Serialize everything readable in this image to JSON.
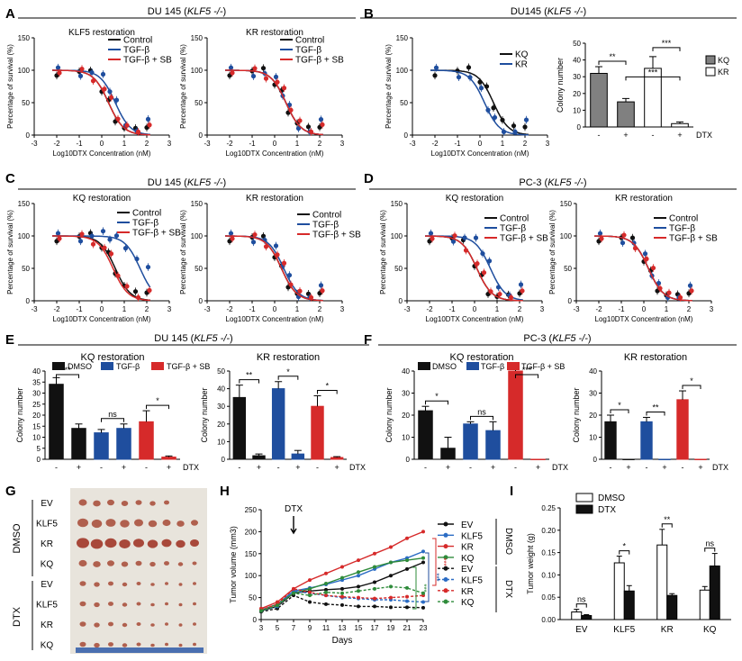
{
  "colors": {
    "black": "#111111",
    "blue": "#1f4e9e",
    "red": "#d62a2a",
    "green": "#2e8b3a",
    "gray": "#808080",
    "white": "#ffffff",
    "light_blue": "#2b6cc4"
  },
  "panel_labels": [
    "A",
    "B",
    "C",
    "D",
    "E",
    "F",
    "G",
    "H",
    "I"
  ],
  "group_titles": {
    "A": "DU 145 (KLF5 -/-)",
    "B": "DU145 (KLF5 -/-)",
    "C": "DU 145 (KLF5 -/-)",
    "D": "PC-3 (KLF5 -/-)",
    "E": "DU 145 (KLF5 -/-)",
    "F": "PC-3 (KLF5 -/-)"
  },
  "common": {
    "survival_ylabel": "Percentage of survival (%)",
    "dtx_xlabel": "Log10DTX Concentration (nM)",
    "colony_ylabel": "Colony number",
    "legend3": [
      "Control",
      "TGF-β",
      "TGF-β + SB"
    ],
    "legend_bars3": [
      "DMSO",
      "TGF-β",
      "TGF-β + SB"
    ],
    "x_ticks": [
      "-3",
      "-2",
      "-1",
      "0",
      "1",
      "2",
      "3"
    ],
    "y_ticks": [
      "0",
      "50",
      "100",
      "150"
    ],
    "signs6": [
      "-",
      "+",
      "-",
      "+",
      "-",
      "+"
    ],
    "dtx_label": "DTX"
  },
  "chart_data": [
    {
      "id": "A1",
      "type": "line",
      "title": "KLF5 restoration",
      "xlim": [
        -3,
        3
      ],
      "ylim": [
        0,
        150
      ],
      "series": [
        {
          "name": "Control",
          "ec50": 0.3
        },
        {
          "name": "TGF-β",
          "ec50": 0.6
        },
        {
          "name": "TGF-β + SB",
          "ec50": 0.3
        }
      ]
    },
    {
      "id": "A2",
      "type": "line",
      "title": "KR restoration",
      "xlim": [
        -3,
        3
      ],
      "ylim": [
        0,
        150
      ],
      "series": [
        {
          "name": "Control",
          "ec50": 0.5
        },
        {
          "name": "TGF-β",
          "ec50": 0.5
        },
        {
          "name": "TGF-β + SB",
          "ec50": 0.5
        }
      ]
    },
    {
      "id": "B1",
      "type": "line",
      "title": "",
      "xlim": [
        -3,
        3
      ],
      "ylim": [
        0,
        150
      ],
      "series": [
        {
          "name": "KQ",
          "ec50": 0.6
        },
        {
          "name": "KR",
          "ec50": 0.2
        }
      ]
    },
    {
      "id": "B2",
      "type": "bar",
      "title": "",
      "ylim": [
        0,
        50
      ],
      "y_ticks": [
        "0",
        "10",
        "20",
        "30",
        "40",
        "50"
      ],
      "legend": [
        "KQ",
        "KR"
      ],
      "values": [
        32,
        15,
        35,
        2
      ],
      "errors": [
        4,
        2,
        7,
        1
      ],
      "sig": [
        {
          "text": "**"
        },
        {
          "text": "***"
        },
        {
          "text": "***"
        }
      ]
    },
    {
      "id": "C1",
      "type": "line",
      "title": "KQ restoration",
      "xlim": [
        -3,
        3
      ],
      "ylim": [
        0,
        150
      ],
      "series": [
        {
          "name": "Control",
          "ec50": 0.6
        },
        {
          "name": "TGF-β",
          "ec50": 1.7
        },
        {
          "name": "TGF-β + SB",
          "ec50": 0.5
        }
      ]
    },
    {
      "id": "C2",
      "type": "line",
      "title": "KR restoration",
      "xlim": [
        -3,
        3
      ],
      "ylim": [
        0,
        150
      ],
      "series": [
        {
          "name": "Control",
          "ec50": 0.3
        },
        {
          "name": "TGF-β",
          "ec50": 0.4
        },
        {
          "name": "TGF-β + SB",
          "ec50": 0.3
        }
      ]
    },
    {
      "id": "D1",
      "type": "line",
      "title": "KQ restoration",
      "xlim": [
        -3,
        3
      ],
      "ylim": [
        0,
        150
      ],
      "series": [
        {
          "name": "Control",
          "ec50": 0.1
        },
        {
          "name": "TGF-β",
          "ec50": 0.7
        },
        {
          "name": "TGF-β + SB",
          "ec50": 0.1
        }
      ]
    },
    {
      "id": "D2",
      "type": "line",
      "title": "KR restoration",
      "xlim": [
        -3,
        3
      ],
      "ylim": [
        0,
        150
      ],
      "series": [
        {
          "name": "Control",
          "ec50": 0.2
        },
        {
          "name": "TGF-β",
          "ec50": 0.2
        },
        {
          "name": "TGF-β + SB",
          "ec50": 0.2
        }
      ]
    },
    {
      "id": "E1",
      "type": "bar",
      "title": "KQ restoration",
      "ylim": [
        0,
        40
      ],
      "y_ticks": [
        "0",
        "5",
        "10",
        "15",
        "20",
        "25",
        "30",
        "35",
        "40"
      ],
      "values": [
        34,
        14,
        12,
        14,
        17,
        1
      ],
      "errors": [
        3,
        2,
        1.5,
        2,
        5,
        0.5
      ],
      "sig": [
        {
          "text": "**"
        },
        {
          "text": "ns"
        },
        {
          "text": "*"
        }
      ]
    },
    {
      "id": "E2",
      "type": "bar",
      "title": "KR restoration",
      "ylim": [
        0,
        50
      ],
      "y_ticks": [
        "0",
        "10",
        "20",
        "30",
        "40",
        "50"
      ],
      "values": [
        35,
        2,
        40,
        3,
        30,
        1
      ],
      "errors": [
        7,
        1,
        4,
        2,
        6,
        0.5
      ],
      "sig": [
        {
          "text": "**"
        },
        {
          "text": "*"
        },
        {
          "text": "*"
        }
      ]
    },
    {
      "id": "F1",
      "type": "bar",
      "title": "KQ restoration",
      "ylim": [
        0,
        40
      ],
      "y_ticks": [
        "0",
        "10",
        "20",
        "30",
        "40"
      ],
      "values": [
        22,
        5,
        16,
        13,
        40,
        0
      ],
      "errors": [
        2,
        5,
        1,
        4,
        1,
        0
      ],
      "sig": [
        {
          "text": "*"
        },
        {
          "text": "ns"
        },
        {
          "text": "***"
        }
      ]
    },
    {
      "id": "F2",
      "type": "bar",
      "title": "KR restoration",
      "ylim": [
        0,
        40
      ],
      "y_ticks": [
        "0",
        "10",
        "20",
        "30",
        "40"
      ],
      "values": [
        17,
        0,
        17,
        0,
        27,
        0
      ],
      "errors": [
        3,
        0,
        2,
        0,
        4,
        0
      ],
      "sig": [
        {
          "text": "*"
        },
        {
          "text": "**"
        },
        {
          "text": "*"
        }
      ]
    },
    {
      "id": "H",
      "type": "line",
      "title": "",
      "xlabel": "Days",
      "ylabel": "Tumor volume (mm3)",
      "ylim": [
        0,
        250
      ],
      "y_ticks": [
        "0",
        "50",
        "100",
        "150",
        "200",
        "250"
      ],
      "x": [
        3,
        5,
        7,
        9,
        11,
        13,
        15,
        17,
        19,
        21,
        23
      ],
      "x_ticks": [
        "3",
        "5",
        "7",
        "9",
        "11",
        "13",
        "15",
        "17",
        "19",
        "21",
        "23"
      ],
      "annotation": "DTX",
      "legend_groups": [
        "DMSO",
        "DTX"
      ],
      "series": [
        {
          "name": "EV",
          "group": "DMSO",
          "values": [
            20,
            30,
            60,
            65,
            68,
            70,
            75,
            85,
            100,
            115,
            130
          ]
        },
        {
          "name": "KLF5",
          "group": "DMSO",
          "values": [
            22,
            35,
            65,
            72,
            80,
            90,
            100,
            115,
            130,
            140,
            155
          ]
        },
        {
          "name": "KR",
          "group": "DMSO",
          "values": [
            25,
            40,
            70,
            90,
            105,
            120,
            135,
            150,
            165,
            185,
            200
          ]
        },
        {
          "name": "KQ",
          "group": "DMSO",
          "values": [
            20,
            35,
            60,
            70,
            82,
            95,
            108,
            120,
            130,
            135,
            140
          ]
        },
        {
          "name": "EV",
          "group": "DTX",
          "values": [
            18,
            25,
            55,
            40,
            35,
            33,
            30,
            30,
            28,
            28,
            27
          ]
        },
        {
          "name": "KLF5",
          "group": "DTX",
          "values": [
            20,
            30,
            65,
            60,
            55,
            50,
            48,
            45,
            45,
            42,
            40
          ]
        },
        {
          "name": "KR",
          "group": "DTX",
          "values": [
            22,
            35,
            70,
            62,
            55,
            52,
            50,
            48,
            50,
            52,
            55
          ]
        },
        {
          "name": "KQ",
          "group": "DTX",
          "values": [
            20,
            32,
            60,
            55,
            62,
            60,
            65,
            70,
            75,
            72,
            60
          ]
        }
      ],
      "sig": [
        "***",
        "***",
        "***"
      ]
    },
    {
      "id": "I",
      "type": "bar",
      "title": "",
      "ylabel": "Tumor weight (g)",
      "ylim": [
        0,
        0.25
      ],
      "y_ticks": [
        "0.00",
        "0.05",
        "0.10",
        "0.15",
        "0.20",
        "0.25"
      ],
      "categories": [
        "EV",
        "KLF5",
        "KR",
        "KQ"
      ],
      "legend": [
        "DMSO",
        "DTX"
      ],
      "series": [
        {
          "name": "DMSO",
          "values": [
            0.017,
            0.127,
            0.167,
            0.066
          ]
        },
        {
          "name": "DTX",
          "values": [
            0.009,
            0.064,
            0.054,
            0.12
          ]
        }
      ],
      "errors": [
        [
          0.006,
          0.015,
          0.035,
          0.008
        ],
        [
          0.002,
          0.012,
          0.004,
          0.028
        ]
      ],
      "sig": [
        "ns",
        "*",
        "**",
        "ns"
      ]
    }
  ],
  "photo": {
    "row_labels": [
      "EV",
      "KLF5",
      "KR",
      "KQ",
      "EV",
      "KLF5",
      "KR",
      "KQ"
    ],
    "group_labels": [
      "DMSO",
      "DTX"
    ]
  }
}
